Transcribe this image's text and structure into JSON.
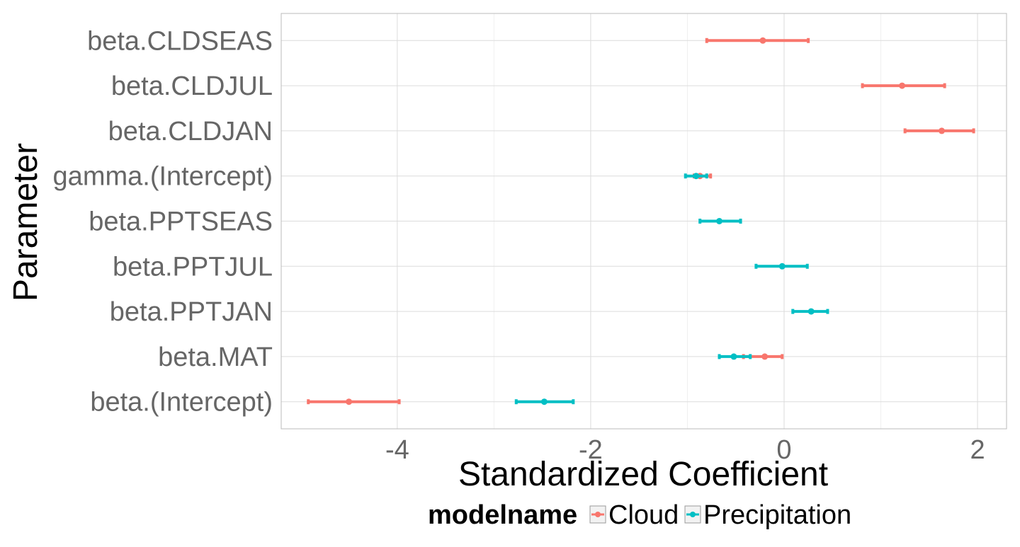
{
  "chart_data": {
    "type": "dot-whisker",
    "xlabel": "Standardized Coefficient",
    "ylabel": "Parameter",
    "xlim": [
      -5.2,
      2.3
    ],
    "x_ticks": [
      -4,
      -2,
      0,
      2
    ],
    "x_tick_labels": [
      "-4",
      "-2",
      "0",
      "2"
    ],
    "categories": [
      "beta.(Intercept)",
      "beta.MAT",
      "beta.PPTJAN",
      "beta.PPTJUL",
      "beta.PPTSEAS",
      "gamma.(Intercept)",
      "beta.CLDJAN",
      "beta.CLDJUL",
      "beta.CLDSEAS"
    ],
    "grid": true,
    "legend": {
      "title": "modelname",
      "position": "bottom"
    },
    "series": [
      {
        "name": "Cloud",
        "color": "#F8766D",
        "points": [
          {
            "param": "beta.(Intercept)",
            "estimate": -4.5,
            "low": -4.92,
            "high": -3.98
          },
          {
            "param": "beta.MAT",
            "estimate": -0.2,
            "low": -0.42,
            "high": -0.02
          },
          {
            "param": "gamma.(Intercept)",
            "estimate": -0.87,
            "low": -0.93,
            "high": -0.76
          },
          {
            "param": "beta.CLDJAN",
            "estimate": 1.63,
            "low": 1.25,
            "high": 1.96
          },
          {
            "param": "beta.CLDJUL",
            "estimate": 1.22,
            "low": 0.81,
            "high": 1.66
          },
          {
            "param": "beta.CLDSEAS",
            "estimate": -0.22,
            "low": -0.8,
            "high": 0.25
          }
        ]
      },
      {
        "name": "Precipitation",
        "color": "#00BFC4",
        "points": [
          {
            "param": "beta.(Intercept)",
            "estimate": -2.48,
            "low": -2.77,
            "high": -2.18
          },
          {
            "param": "beta.MAT",
            "estimate": -0.52,
            "low": -0.67,
            "high": -0.35
          },
          {
            "param": "beta.PPTJAN",
            "estimate": 0.28,
            "low": 0.09,
            "high": 0.45
          },
          {
            "param": "beta.PPTJUL",
            "estimate": -0.02,
            "low": -0.29,
            "high": 0.24
          },
          {
            "param": "beta.PPTSEAS",
            "estimate": -0.67,
            "low": -0.87,
            "high": -0.45
          },
          {
            "param": "gamma.(Intercept)",
            "estimate": -0.91,
            "low": -1.02,
            "high": -0.8
          }
        ]
      }
    ]
  }
}
